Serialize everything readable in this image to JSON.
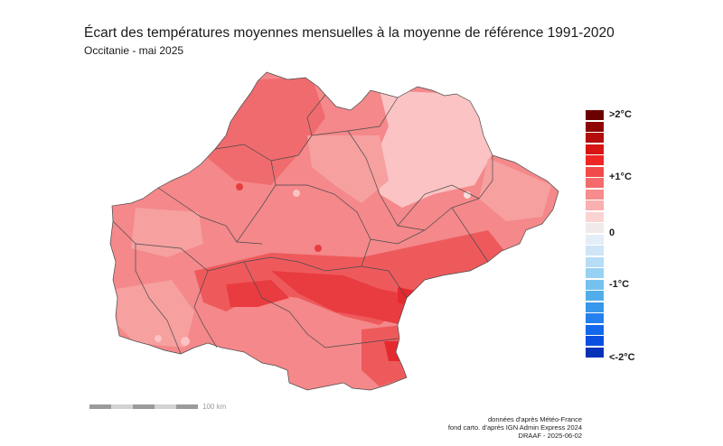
{
  "title": "Écart des températures moyennes mensuelles à la moyenne de référence 1991-2020",
  "subtitle": "Occitanie - mai 2025",
  "legend": {
    "labels": {
      "max": ">2°C",
      "plus1": "+1°C",
      "zero": "0",
      "minus1": "-1°C",
      "min": "<-2°C"
    },
    "colors": [
      "#6b0000",
      "#8f0505",
      "#b30d0d",
      "#d81414",
      "#ef2626",
      "#f24a4a",
      "#f36b6b",
      "#f68c8c",
      "#f9b0b0",
      "#fbd3d3",
      "#f1eaea",
      "#e4eef8",
      "#cfe5f7",
      "#b7dcf6",
      "#98d2f3",
      "#76c2ee",
      "#52aeea",
      "#3897ea",
      "#2480ec",
      "#1468ea",
      "#0a4fe0",
      "#0632b8"
    ]
  },
  "scale": {
    "label": "100 km"
  },
  "credits": {
    "line1": "données d'après Météo-France",
    "line2": "fond carto. d'après IGN Admin Express 2024",
    "line3": "DRAAF - 2025-06-02"
  },
  "map": {
    "region": "Occitanie",
    "base_color": "#f4888a",
    "zone_colors": {
      "light": "#fbc3c3",
      "mid": "#f6a0a0",
      "strong": "#ee5a5c",
      "very_strong": "#e93c40",
      "hot": "#e52a2f"
    }
  }
}
